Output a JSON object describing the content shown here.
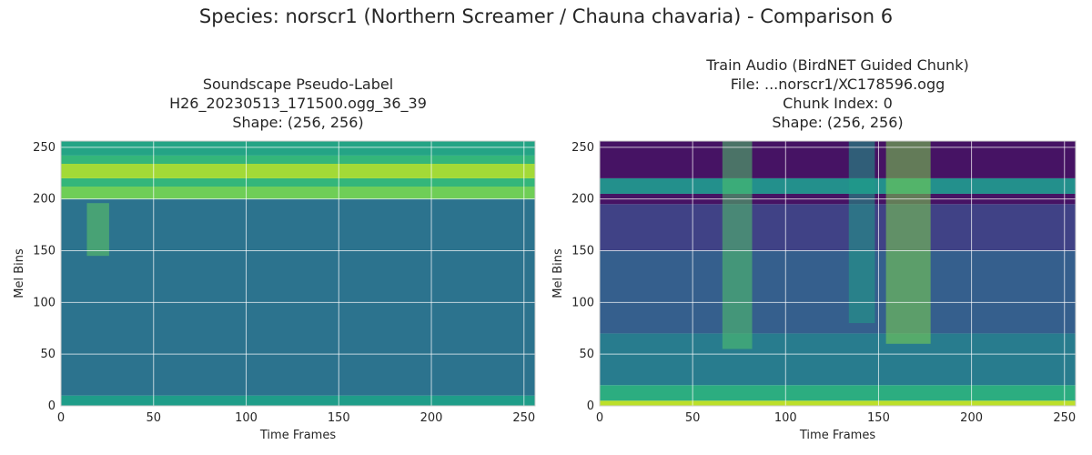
{
  "figure": {
    "suptitle": "Species: norscr1 (Northern Screamer / Chauna chavaria) - Comparison 6"
  },
  "chart_data": [
    {
      "type": "heatmap",
      "title_lines": [
        "Soundscape Pseudo-Label",
        "H26_20230513_171500.ogg_36_39",
        "Shape: (256, 256)"
      ],
      "xlabel": "Time Frames",
      "ylabel": "Mel Bins",
      "xlim": [
        0,
        256
      ],
      "ylim": [
        0,
        256
      ],
      "xticks": [
        0,
        50,
        100,
        150,
        200,
        250
      ],
      "yticks": [
        0,
        50,
        100,
        150,
        200,
        250
      ],
      "grid": true,
      "colormap": "viridis",
      "shape": [
        256,
        256
      ],
      "bands": [
        {
          "y": [
            0,
            10
          ],
          "level": 0.55
        },
        {
          "y": [
            10,
            200
          ],
          "level": 0.38
        },
        {
          "y": [
            200,
            212
          ],
          "level": 0.78
        },
        {
          "y": [
            212,
            220
          ],
          "level": 0.66
        },
        {
          "y": [
            220,
            234
          ],
          "level": 0.86
        },
        {
          "y": [
            234,
            242
          ],
          "level": 0.66
        },
        {
          "y": [
            242,
            256
          ],
          "level": 0.58
        }
      ],
      "events": [
        {
          "x": [
            14,
            26
          ],
          "y": [
            145,
            196
          ],
          "level": 0.75
        }
      ]
    },
    {
      "type": "heatmap",
      "title_lines": [
        "Train Audio (BirdNET Guided Chunk)",
        "File: ...norscr1/XC178596.ogg",
        "Chunk Index: 0",
        "Shape: (256, 256)"
      ],
      "xlabel": "Time Frames",
      "ylabel": "Mel Bins",
      "xlim": [
        0,
        256
      ],
      "ylim": [
        0,
        256
      ],
      "xticks": [
        0,
        50,
        100,
        150,
        200,
        250
      ],
      "yticks": [
        0,
        50,
        100,
        150,
        200,
        250
      ],
      "grid": true,
      "colormap": "viridis",
      "shape": [
        256,
        256
      ],
      "bands": [
        {
          "y": [
            0,
            5
          ],
          "level": 0.9
        },
        {
          "y": [
            5,
            20
          ],
          "level": 0.62
        },
        {
          "y": [
            20,
            70
          ],
          "level": 0.42
        },
        {
          "y": [
            70,
            150
          ],
          "level": 0.3
        },
        {
          "y": [
            150,
            195
          ],
          "level": 0.2
        },
        {
          "y": [
            195,
            205
          ],
          "level": 0.05
        },
        {
          "y": [
            205,
            220
          ],
          "level": 0.5
        },
        {
          "y": [
            220,
            256
          ],
          "level": 0.05
        }
      ],
      "events": [
        {
          "x": [
            66,
            82
          ],
          "y": [
            55,
            256
          ],
          "level": 0.72
        },
        {
          "x": [
            134,
            148
          ],
          "y": [
            80,
            256
          ],
          "level": 0.55
        },
        {
          "x": [
            154,
            178
          ],
          "y": [
            60,
            256
          ],
          "level": 0.8
        }
      ]
    }
  ]
}
